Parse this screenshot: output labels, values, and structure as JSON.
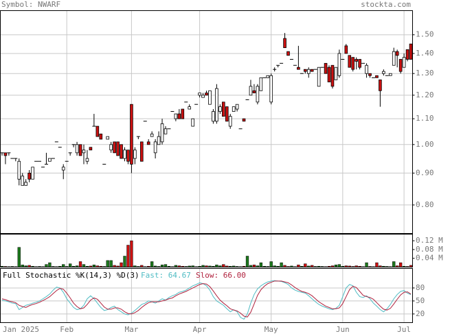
{
  "header": {
    "symbol": "Symbol: NWARF",
    "site": "stockta.com"
  },
  "chart_data": [
    {
      "type": "candlestick",
      "log_scale": true,
      "grid": true,
      "up_color": "#ffffff",
      "down_color": "#cc1111",
      "categories": [
        "Jan 2025",
        null,
        null,
        null,
        null,
        null,
        null,
        null,
        null,
        null,
        null,
        null,
        null,
        null,
        null,
        null,
        null,
        null,
        null,
        "Feb",
        null,
        null,
        null,
        null,
        null,
        null,
        null,
        null,
        null,
        null,
        null,
        null,
        null,
        null,
        null,
        null,
        null,
        null,
        "Mar",
        null,
        null,
        null,
        null,
        null,
        null,
        null,
        null,
        null,
        null,
        null,
        null,
        null,
        null,
        null,
        null,
        null,
        null,
        null,
        "Apr",
        null,
        null,
        null,
        null,
        null,
        null,
        null,
        null,
        null,
        null,
        null,
        null,
        null,
        null,
        null,
        null,
        null,
        null,
        null,
        null,
        "May",
        null,
        null,
        null,
        null,
        null,
        null,
        null,
        null,
        null,
        null,
        null,
        null,
        null,
        null,
        null,
        null,
        null,
        null,
        null,
        null,
        "Jun",
        null,
        null,
        null,
        null,
        null,
        null,
        null,
        null,
        null,
        null,
        null,
        null,
        null,
        null,
        null,
        null,
        null,
        "Jul",
        null,
        null
      ],
      "open": [
        0.97,
        0.97,
        0.97,
        0.95,
        0.95,
        0.88,
        0.86,
        0.86,
        0.9,
        0.88,
        0.94,
        0.94,
        0.92,
        0.93,
        0.94,
        0.95,
        1.01,
        0.99,
        0.91,
        0.94,
        0.97,
        1.0,
        0.97,
        1.0,
        0.97,
        0.94,
        0.99,
        1.07,
        1.07,
        1.04,
        0.93,
        1.02,
        0.98,
        1.01,
        1.01,
        1.0,
        0.95,
        0.98,
        1.16,
        0.95,
        1.03,
        1.01,
        1.09,
        1.01,
        1.03,
        0.97,
        1.0,
        1.01,
        1.04,
        1.06,
        1.13,
        1.1,
        1.12,
        1.14,
        1.17,
        1.14,
        1.07,
        1.16,
        1.2,
        1.19,
        1.21,
        1.16,
        1.09,
        1.09,
        1.13,
        1.17,
        1.15,
        1.07,
        1.13,
        1.14,
        1.06,
        1.1,
        1.18,
        1.2,
        1.22,
        1.17,
        1.22,
        1.28,
        1.28,
        1.17,
        1.32,
        1.34,
        1.35,
        1.48,
        1.41,
        1.37,
        1.34,
        1.33,
        1.3,
        1.32,
        1.3,
        1.32,
        1.32,
        1.24,
        1.33,
        1.35,
        1.33,
        1.34,
        1.27,
        1.29,
        1.37,
        1.44,
        1.39,
        1.38,
        1.37,
        1.37,
        1.35,
        1.3,
        1.3,
        1.28,
        1.29,
        1.27,
        1.3,
        1.29,
        1.29,
        1.34,
        1.41,
        1.37,
        1.33,
        1.42,
        1.45
      ],
      "high": [
        0.97,
        0.97,
        0.97,
        0.95,
        0.95,
        0.95,
        0.9,
        0.88,
        0.91,
        0.92,
        0.94,
        0.94,
        0.92,
        0.97,
        0.95,
        0.95,
        1.01,
        0.99,
        0.93,
        0.94,
        0.97,
        1.0,
        1.01,
        1.0,
        1.0,
        0.98,
        0.99,
        1.12,
        1.07,
        1.04,
        0.93,
        1.03,
        1.01,
        1.01,
        1.01,
        1.0,
        0.99,
        0.98,
        1.16,
        0.99,
        1.03,
        1.01,
        1.09,
        1.02,
        1.05,
        1.02,
        1.05,
        1.1,
        1.07,
        1.06,
        1.13,
        1.12,
        1.14,
        1.14,
        1.17,
        1.16,
        1.1,
        1.16,
        1.21,
        1.21,
        1.22,
        1.22,
        1.14,
        1.25,
        1.16,
        1.17,
        1.15,
        1.12,
        1.15,
        1.16,
        1.06,
        1.1,
        1.18,
        1.27,
        1.25,
        1.25,
        1.28,
        1.28,
        1.29,
        1.3,
        1.33,
        1.34,
        1.35,
        1.51,
        1.41,
        1.37,
        1.34,
        1.44,
        1.3,
        1.32,
        1.33,
        1.32,
        1.32,
        1.33,
        1.33,
        1.35,
        1.34,
        1.34,
        1.33,
        1.42,
        1.37,
        1.45,
        1.39,
        1.38,
        1.38,
        1.37,
        1.35,
        1.35,
        1.3,
        1.28,
        1.29,
        1.27,
        1.32,
        1.29,
        1.3,
        1.43,
        1.42,
        1.37,
        1.4,
        1.42,
        1.45
      ],
      "low": [
        0.96,
        0.93,
        0.96,
        0.95,
        0.94,
        0.86,
        0.86,
        0.86,
        0.87,
        0.88,
        0.94,
        0.94,
        0.92,
        0.93,
        0.94,
        0.95,
        1.01,
        0.99,
        0.88,
        0.94,
        0.96,
        0.99,
        0.96,
        0.96,
        0.93,
        0.93,
        0.98,
        1.07,
        1.03,
        1.02,
        0.93,
        1.02,
        0.97,
        0.97,
        0.96,
        0.95,
        0.94,
        0.93,
        0.9,
        0.93,
        1.02,
        0.94,
        1.09,
        1.0,
        1.03,
        0.95,
        1.0,
        1.0,
        1.04,
        1.06,
        1.13,
        1.09,
        1.1,
        1.1,
        1.17,
        1.14,
        1.07,
        1.16,
        1.19,
        1.19,
        1.2,
        1.16,
        1.08,
        1.08,
        1.12,
        1.11,
        1.09,
        1.06,
        1.13,
        1.13,
        1.06,
        1.09,
        1.18,
        1.2,
        1.21,
        1.16,
        1.22,
        1.28,
        1.28,
        1.16,
        1.31,
        1.33,
        1.35,
        1.43,
        1.39,
        1.37,
        1.34,
        1.32,
        1.3,
        1.3,
        1.28,
        1.31,
        1.32,
        1.24,
        1.33,
        1.3,
        1.26,
        1.23,
        1.27,
        1.28,
        1.37,
        1.4,
        1.33,
        1.31,
        1.32,
        1.32,
        1.35,
        1.28,
        1.28,
        1.28,
        1.28,
        1.15,
        1.29,
        1.29,
        1.29,
        1.34,
        1.33,
        1.3,
        1.33,
        1.36,
        1.37
      ],
      "close": [
        0.97,
        0.96,
        0.97,
        0.95,
        0.95,
        0.94,
        0.89,
        0.87,
        0.88,
        0.92,
        0.94,
        0.94,
        0.92,
        0.93,
        0.95,
        0.95,
        1.01,
        0.99,
        0.92,
        0.94,
        0.97,
        1.0,
        1.0,
        0.96,
        0.98,
        0.95,
        0.98,
        1.07,
        1.03,
        1.02,
        0.93,
        1.03,
        1.0,
        0.97,
        0.96,
        0.95,
        0.98,
        0.94,
        0.93,
        0.98,
        1.03,
        0.94,
        1.09,
        1.0,
        1.04,
        1.01,
        1.03,
        1.08,
        1.06,
        1.06,
        1.13,
        1.12,
        1.1,
        1.1,
        1.17,
        1.15,
        1.1,
        1.16,
        1.21,
        1.2,
        1.2,
        1.22,
        1.13,
        1.23,
        1.15,
        1.11,
        1.09,
        1.11,
        1.15,
        1.16,
        1.06,
        1.09,
        1.18,
        1.24,
        1.21,
        1.24,
        1.28,
        1.28,
        1.29,
        1.29,
        1.32,
        1.34,
        1.35,
        1.43,
        1.39,
        1.37,
        1.34,
        1.32,
        1.3,
        1.31,
        1.32,
        1.31,
        1.32,
        1.33,
        1.33,
        1.3,
        1.26,
        1.24,
        1.33,
        1.4,
        1.37,
        1.4,
        1.33,
        1.32,
        1.36,
        1.33,
        1.35,
        1.34,
        1.29,
        1.28,
        1.28,
        1.22,
        1.31,
        1.29,
        1.3,
        1.41,
        1.39,
        1.31,
        1.38,
        1.37,
        1.37
      ],
      "ylim": [
        0.72,
        1.64
      ],
      "yticks": [
        {
          "value": 1.5,
          "label": "1.50"
        },
        {
          "value": 1.4,
          "label": "1.40"
        },
        {
          "value": 1.3,
          "label": "1.30"
        },
        {
          "value": 1.2,
          "label": "1.20"
        },
        {
          "value": 1.1,
          "label": "1.10"
        },
        {
          "value": 1.0,
          "label": "1.00"
        },
        {
          "value": 0.9,
          "label": "0.90"
        },
        {
          "value": 0.8,
          "label": "0.80"
        }
      ]
    },
    {
      "type": "bar",
      "up_color": "#1d7a1d",
      "down_color": "#cc1111",
      "values": [
        0.004,
        0.003,
        0.002,
        0.003,
        0.002,
        0.09,
        0.01,
        0.006,
        0.008,
        0.004,
        0.002,
        0.003,
        0.002,
        0.012,
        0.02,
        0.003,
        0.002,
        0.004,
        0.012,
        0.003,
        0.015,
        0.004,
        0.006,
        0.025,
        0.012,
        0.004,
        0.005,
        0.01,
        0.006,
        0.004,
        0.003,
        0.03,
        0.03,
        0.008,
        0.005,
        0.02,
        0.05,
        0.1,
        0.12,
        0.006,
        0.003,
        0.008,
        0.002,
        0.004,
        0.025,
        0.005,
        0.003,
        0.01,
        0.012,
        0.004,
        0.002,
        0.008,
        0.006,
        0.004,
        0.003,
        0.005,
        0.006,
        0.002,
        0.004,
        0.008,
        0.006,
        0.005,
        0.004,
        0.01,
        0.006,
        0.012,
        0.005,
        0.004,
        0.005,
        0.003,
        0.002,
        0.004,
        0.05,
        0.008,
        0.01,
        0.006,
        0.02,
        0.004,
        0.003,
        0.025,
        0.006,
        0.004,
        0.02,
        0.008,
        0.003,
        0.005,
        0.002,
        0.01,
        0.004,
        0.015,
        0.005,
        0.008,
        0.003,
        0.004,
        0.003,
        0.002,
        0.004,
        0.006,
        0.01,
        0.012,
        0.004,
        0.006,
        0.005,
        0.003,
        0.006,
        0.004,
        0.002,
        0.02,
        0.003,
        0.002,
        0.02,
        0.006,
        0.004,
        0.003,
        0.002,
        0.025,
        0.006,
        0.02,
        0.004,
        0.003,
        0.008
      ],
      "ylim": [
        0,
        0.15
      ],
      "yticks": [
        {
          "value": 0.12,
          "label": "0.12 M"
        },
        {
          "value": 0.08,
          "label": "0.08 M"
        },
        {
          "value": 0.04,
          "label": "0.04 M"
        }
      ]
    },
    {
      "type": "line",
      "title": "Full Stochastic %K(14,3) %D(3)",
      "fast_label": "Fast: 64.67",
      "slow_label": "Slow: 66.00",
      "series": [
        {
          "name": "Fast",
          "color": "#4fbcc4",
          "values": [
            52,
            50,
            48,
            45,
            44,
            30,
            35,
            40,
            42,
            45,
            47,
            50,
            55,
            60,
            66,
            75,
            82,
            80,
            70,
            55,
            45,
            35,
            30,
            32,
            40,
            55,
            62,
            55,
            45,
            35,
            28,
            30,
            35,
            38,
            30,
            25,
            20,
            18,
            22,
            28,
            35,
            42,
            45,
            50,
            48,
            45,
            50,
            55,
            52,
            58,
            62,
            65,
            70,
            72,
            75,
            80,
            85,
            88,
            92,
            90,
            85,
            75,
            60,
            50,
            45,
            40,
            32,
            25,
            30,
            25,
            12,
            8,
            20,
            45,
            65,
            78,
            85,
            90,
            94,
            96,
            97,
            96,
            95,
            92,
            88,
            80,
            75,
            72,
            70,
            68,
            62,
            55,
            48,
            42,
            38,
            35,
            32,
            30,
            33,
            40,
            60,
            80,
            88,
            85,
            70,
            60,
            58,
            62,
            55,
            45,
            38,
            30,
            25,
            32,
            42,
            55,
            65,
            72,
            74,
            68,
            64.67
          ]
        },
        {
          "name": "Slow",
          "color": "#b0203c",
          "values": [
            55,
            53,
            50,
            48,
            46,
            40,
            37,
            35,
            39,
            42,
            44,
            47,
            51,
            55,
            60,
            67,
            74,
            79,
            77,
            68,
            57,
            45,
            37,
            32,
            34,
            42,
            52,
            57,
            54,
            45,
            36,
            31,
            31,
            34,
            34,
            31,
            25,
            21,
            20,
            23,
            28,
            35,
            41,
            46,
            48,
            48,
            48,
            50,
            52,
            55,
            57,
            62,
            66,
            69,
            72,
            76,
            80,
            84,
            88,
            90,
            89,
            83,
            73,
            62,
            52,
            45,
            39,
            32,
            29,
            27,
            22,
            15,
            13,
            24,
            43,
            63,
            76,
            84,
            90,
            93,
            96,
            96,
            96,
            94,
            92,
            87,
            81,
            76,
            72,
            70,
            67,
            62,
            55,
            48,
            43,
            38,
            35,
            32,
            32,
            34,
            44,
            60,
            76,
            84,
            81,
            72,
            63,
            60,
            58,
            54,
            46,
            38,
            31,
            29,
            33,
            43,
            54,
            64,
            70,
            71,
            66
          ]
        }
      ],
      "ylim": [
        0,
        125
      ],
      "yticks": [
        80,
        50,
        20
      ]
    }
  ]
}
